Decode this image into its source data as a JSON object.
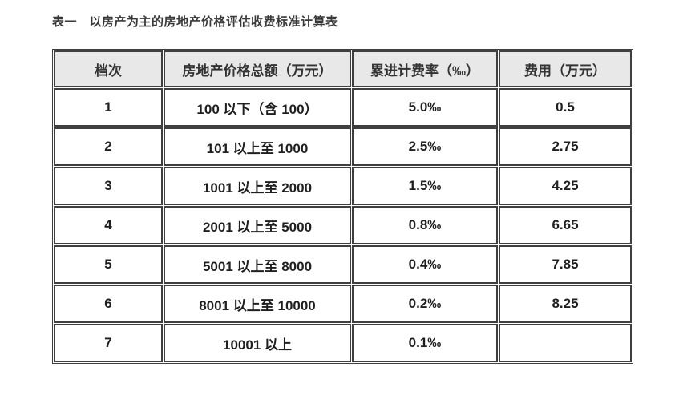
{
  "page": {
    "background": "#ffffff",
    "border_color": "#3f3f3f",
    "header_bg": "#e8e8e8"
  },
  "title": "表一　以房产为主的房地产价格评估收费标准计算表",
  "table": {
    "columns": [
      "档次",
      "房地产价格总额（万元）",
      "累进计费率（‰）",
      "费用（万元）"
    ],
    "rows": [
      [
        "1",
        "100 以下（含 100）",
        "5.0‰",
        "0.5"
      ],
      [
        "2",
        "101 以上至 1000",
        "2.5‰",
        "2.75"
      ],
      [
        "3",
        "1001 以上至 2000",
        "1.5‰",
        "4.25"
      ],
      [
        "4",
        "2001 以上至 5000",
        "0.8‰",
        "6.65"
      ],
      [
        "5",
        "5001 以上至 8000",
        "0.4‰",
        "7.85"
      ],
      [
        "6",
        "8001 以上至 10000",
        "0.2‰",
        "8.25"
      ],
      [
        "7",
        "10001 以上",
        "0.1‰",
        ""
      ]
    ]
  }
}
